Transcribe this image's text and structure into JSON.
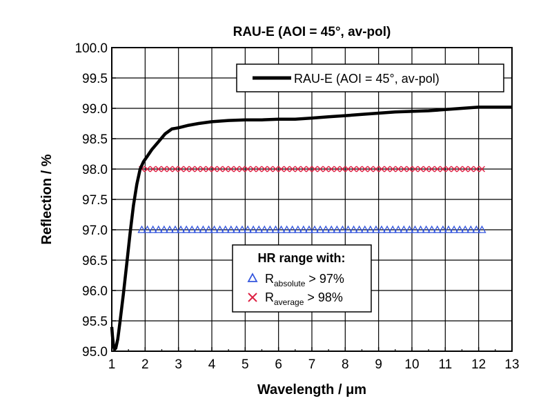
{
  "chart_data": {
    "type": "line",
    "title": "RAU-E (AOI = 45°, av-pol)",
    "xlabel": "Wavelength / μm",
    "ylabel": "Reflection / %",
    "xlim": [
      1,
      13
    ],
    "ylim": [
      95.0,
      100.0
    ],
    "x_ticks": [
      "1",
      "2",
      "3",
      "4",
      "5",
      "6",
      "7",
      "8",
      "9",
      "10",
      "11",
      "12",
      "13"
    ],
    "y_ticks": [
      "95.0",
      "95.5",
      "96.0",
      "96.5",
      "97.0",
      "97.5",
      "98.0",
      "98.5",
      "99.0",
      "99.5",
      "100.0"
    ],
    "grid": true,
    "series": [
      {
        "name": "RAU-E (AOI = 45°, av-pol)",
        "color": "#000000",
        "x": [
          1.0,
          1.02,
          1.05,
          1.08,
          1.12,
          1.18,
          1.25,
          1.35,
          1.45,
          1.55,
          1.65,
          1.75,
          1.85,
          1.95,
          2.05,
          2.2,
          2.4,
          2.6,
          2.8,
          3.0,
          3.3,
          3.6,
          4.0,
          4.5,
          5.0,
          5.5,
          6.0,
          6.5,
          7.0,
          7.5,
          8.0,
          8.5,
          9.0,
          9.5,
          10.0,
          10.5,
          11.0,
          11.5,
          12.0,
          12.5,
          13.0
        ],
        "values": [
          95.4,
          95.25,
          95.1,
          95.03,
          95.05,
          95.2,
          95.5,
          95.95,
          96.45,
          96.95,
          97.4,
          97.75,
          98.0,
          98.12,
          98.2,
          98.32,
          98.45,
          98.58,
          98.66,
          98.68,
          98.72,
          98.75,
          98.78,
          98.8,
          98.81,
          98.81,
          98.82,
          98.82,
          98.84,
          98.86,
          98.88,
          98.9,
          98.92,
          98.94,
          98.95,
          98.96,
          98.98,
          99.0,
          99.02,
          99.02,
          99.02
        ]
      },
      {
        "name": "R_absolute > 97%",
        "color": "#3355dd",
        "marker": "triangle",
        "x_range": [
          1.9,
          12.1
        ],
        "count": 62,
        "value": 97.0
      },
      {
        "name": "R_average > 98%",
        "color": "#dd2244",
        "marker": "cross",
        "x_range": [
          1.9,
          12.1
        ],
        "count": 62,
        "value": 98.0
      }
    ],
    "legend_main": {
      "label": "RAU-E (AOI = 45°, av-pol)",
      "placement": "top-right"
    },
    "legend_hr": {
      "title": "HR range with:",
      "item1_main": "R",
      "item1_sub": "absolute",
      "item1_tail": " > 97%",
      "item2_main": "R",
      "item2_sub": "average",
      "item2_tail": " > 98%",
      "placement": "bottom-center"
    }
  }
}
